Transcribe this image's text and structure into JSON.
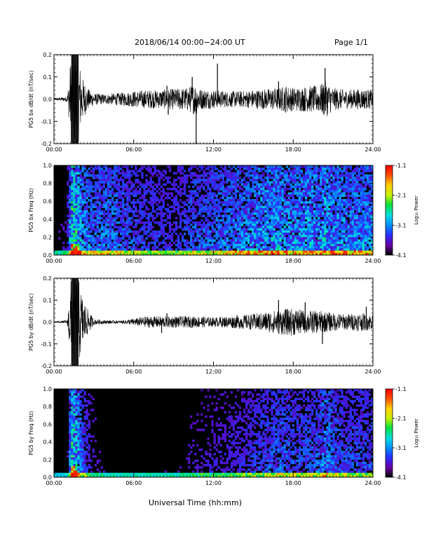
{
  "header": {
    "title": "2018/06/14   00:00−24:00 UT",
    "page_label": "Page 1/1"
  },
  "x_axis_title": "Universal Time (hh:mm)",
  "chart_data": [
    {
      "type": "line",
      "ylabel": "PG5 bx dB/dt (nT/sec)",
      "xlim": [
        0,
        24
      ],
      "ylim": [
        -0.2,
        0.2
      ],
      "x_tick_labels": [
        "00:00",
        "06:00",
        "12:00",
        "18:00",
        "24:00"
      ],
      "y_tick_labels": [
        "0.2",
        "0.1",
        "0.0",
        "-0.1",
        "-0.2"
      ],
      "envelope": {
        "hours": [
          0,
          0.5,
          1.0,
          1.3,
          1.5,
          1.8,
          2.1,
          2.5,
          3.0,
          4.0,
          5.0,
          6.0,
          7.0,
          8.0,
          9.0,
          10.0,
          10.7,
          11.0,
          12.0,
          13.0,
          14.0,
          15.0,
          16.0,
          17.0,
          17.5,
          18.0,
          19.0,
          20.0,
          20.4,
          21.0,
          22.0,
          23.0,
          24.0
        ],
        "amplitude": [
          0.005,
          0.007,
          0.012,
          0.2,
          0.2,
          0.2,
          0.1,
          0.05,
          0.025,
          0.022,
          0.028,
          0.035,
          0.04,
          0.04,
          0.045,
          0.05,
          0.07,
          0.045,
          0.04,
          0.035,
          0.035,
          0.04,
          0.045,
          0.05,
          0.06,
          0.05,
          0.055,
          0.06,
          0.08,
          0.05,
          0.04,
          0.045,
          0.04
        ]
      },
      "spikes": [
        {
          "hour": 10.7,
          "value": -0.2
        },
        {
          "hour": 10.4,
          "value": 0.1
        },
        {
          "hour": 8.5,
          "value": 0.06
        },
        {
          "hour": 12.3,
          "value": 0.16
        },
        {
          "hour": 16.9,
          "value": 0.08
        },
        {
          "hour": 20.4,
          "value": 0.14
        },
        {
          "hour": 8.6,
          "value": -0.07
        }
      ]
    },
    {
      "type": "heatmap",
      "ylabel": "PG5 bx Freq (Hz)",
      "xlim": [
        0,
        24
      ],
      "ylim": [
        0.0,
        1.0
      ],
      "x_tick_labels": [
        "00:00",
        "06:00",
        "12:00",
        "18:00",
        "24:00"
      ],
      "y_tick_labels": [
        "1.0",
        "0.8",
        "0.6",
        "0.4",
        "0.2",
        "0.0"
      ],
      "colorbar": {
        "label": "Log₁₀ Power",
        "range": [
          -4.1,
          -1.1
        ],
        "tick_labels": [
          "-1.1",
          "-2.1",
          "-3.1",
          "-4.1"
        ]
      },
      "activity": {
        "hours": [
          0,
          1.0,
          1.4,
          1.7,
          2.2,
          3.0,
          4.0,
          5.0,
          6.0,
          8.0,
          9.5,
          10.5,
          12.0,
          13.5,
          15.0,
          16.0,
          17.0,
          18.0,
          19.0,
          20.0,
          20.4,
          21.0,
          22.0,
          23.0,
          24.0
        ],
        "level": [
          0.15,
          0.2,
          0.85,
          0.7,
          0.5,
          0.4,
          0.45,
          0.4,
          0.35,
          0.3,
          0.3,
          0.38,
          0.4,
          0.45,
          0.5,
          0.55,
          0.55,
          0.5,
          0.55,
          0.55,
          0.6,
          0.55,
          0.5,
          0.5,
          0.5
        ]
      },
      "strong_low_freq_hours": [
        1.5,
        1.7
      ]
    },
    {
      "type": "line",
      "ylabel": "PG5 by dB/dt (nT/sec)",
      "xlim": [
        0,
        24
      ],
      "ylim": [
        -0.2,
        0.2
      ],
      "x_tick_labels": [
        "00:00",
        "06:00",
        "12:00",
        "18:00",
        "24:00"
      ],
      "y_tick_labels": [
        "0.2",
        "0.1",
        "0.0",
        "-0.1",
        "-0.2"
      ],
      "envelope": {
        "hours": [
          0,
          0.5,
          1.0,
          1.3,
          1.5,
          1.8,
          2.1,
          2.5,
          3.0,
          4.0,
          5.0,
          6.0,
          7.0,
          8.0,
          9.0,
          10.0,
          11.0,
          12.0,
          13.0,
          14.0,
          15.0,
          16.0,
          17.0,
          18.0,
          19.0,
          20.0,
          21.0,
          22.0,
          23.0,
          24.0
        ],
        "amplitude": [
          0.003,
          0.004,
          0.008,
          0.2,
          0.2,
          0.2,
          0.12,
          0.06,
          0.012,
          0.008,
          0.006,
          0.015,
          0.025,
          0.025,
          0.025,
          0.025,
          0.025,
          0.02,
          0.025,
          0.03,
          0.035,
          0.045,
          0.055,
          0.06,
          0.05,
          0.05,
          0.04,
          0.035,
          0.04,
          0.035
        ]
      },
      "spikes": [
        {
          "hour": 16.9,
          "value": 0.1
        },
        {
          "hour": 18.9,
          "value": 0.09
        },
        {
          "hour": 20.2,
          "value": -0.1
        },
        {
          "hour": 8.1,
          "value": -0.05
        },
        {
          "hour": 23.5,
          "value": 0.07
        },
        {
          "hour": 8.5,
          "value": 0.04
        }
      ]
    },
    {
      "type": "heatmap",
      "ylabel": "PG5 by Freq (Hz)",
      "xlim": [
        0,
        24
      ],
      "ylim": [
        0.0,
        1.0
      ],
      "x_tick_labels": [
        "00:00",
        "06:00",
        "12:00",
        "18:00",
        "24:00"
      ],
      "y_tick_labels": [
        "1.0",
        "0.8",
        "0.6",
        "0.4",
        "0.2",
        "0.0"
      ],
      "colorbar": {
        "label": "Log₁₀ Power",
        "range": [
          -4.1,
          -1.1
        ],
        "tick_labels": [
          "-1.1",
          "-2.1",
          "-3.1",
          "-4.1"
        ]
      },
      "activity": {
        "hours": [
          0,
          1.0,
          1.4,
          1.7,
          2.2,
          3.0,
          4.0,
          5.0,
          6.0,
          8.0,
          9.5,
          10.5,
          12.0,
          13.5,
          15.0,
          16.0,
          17.0,
          18.0,
          19.0,
          20.0,
          20.4,
          21.0,
          22.0,
          23.0,
          24.0
        ],
        "level": [
          0.05,
          0.1,
          0.8,
          0.65,
          0.35,
          0.2,
          0.15,
          0.12,
          0.12,
          0.15,
          0.15,
          0.2,
          0.22,
          0.25,
          0.3,
          0.35,
          0.4,
          0.35,
          0.35,
          0.4,
          0.5,
          0.4,
          0.35,
          0.35,
          0.35
        ]
      },
      "strong_low_freq_hours": [
        1.5,
        1.7
      ]
    }
  ],
  "colors": {
    "background": "#ffffff",
    "axes": "#000000",
    "trace": "#000000",
    "colormap": [
      "#000000",
      "#6a00a8",
      "#2a2cff",
      "#0090ff",
      "#00e0e0",
      "#00e040",
      "#c8f000",
      "#ffd000",
      "#ff5000",
      "#ff0000"
    ]
  }
}
